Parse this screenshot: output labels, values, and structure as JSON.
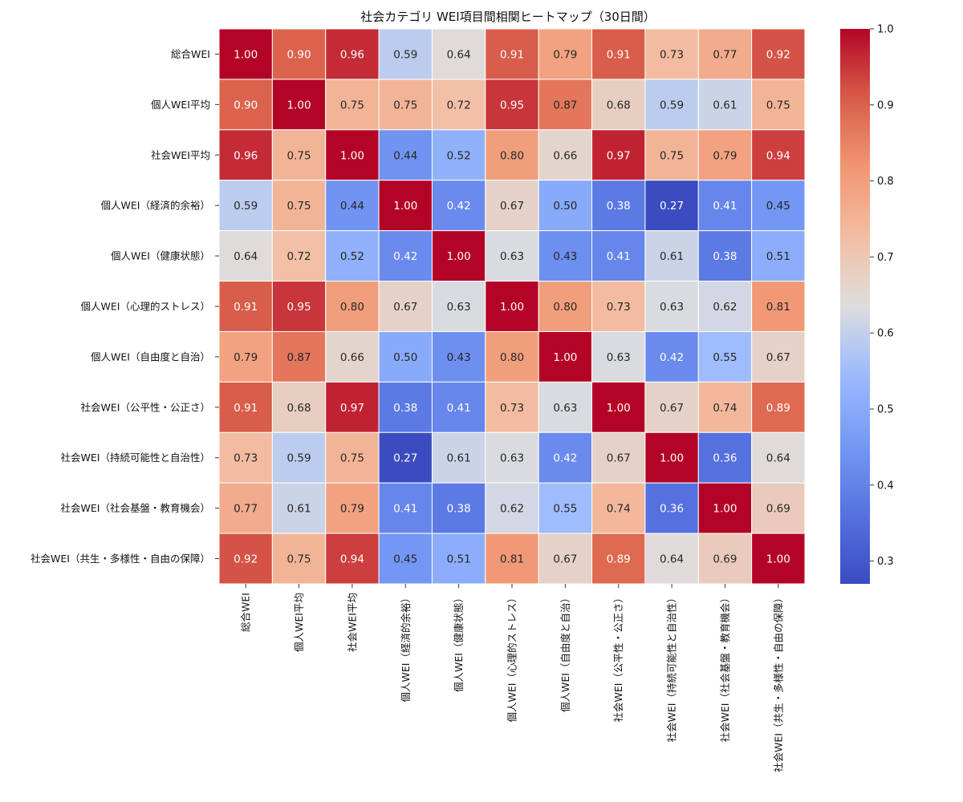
{
  "chart_data": {
    "type": "heatmap",
    "title": "社会カテゴリ WEI項目間相関ヒートマップ（30日間）",
    "labels": [
      "総合WEI",
      "個人WEI平均",
      "社会WEI平均",
      "個人WEI（経済的余裕）",
      "個人WEI（健康状態）",
      "個人WEI（心理的ストレス）",
      "個人WEI（自由度と自治）",
      "社会WEI（公平性・公正さ）",
      "社会WEI（持続可能性と自治性）",
      "社会WEI（社会基盤・教育機会）",
      "社会WEI（共生・多様性・自由の保障）"
    ],
    "matrix": [
      [
        1.0,
        0.9,
        0.96,
        0.59,
        0.64,
        0.91,
        0.79,
        0.91,
        0.73,
        0.77,
        0.92
      ],
      [
        0.9,
        1.0,
        0.75,
        0.75,
        0.72,
        0.95,
        0.87,
        0.68,
        0.59,
        0.61,
        0.75
      ],
      [
        0.96,
        0.75,
        1.0,
        0.44,
        0.52,
        0.8,
        0.66,
        0.97,
        0.75,
        0.79,
        0.94
      ],
      [
        0.59,
        0.75,
        0.44,
        1.0,
        0.42,
        0.67,
        0.5,
        0.38,
        0.27,
        0.41,
        0.45
      ],
      [
        0.64,
        0.72,
        0.52,
        0.42,
        1.0,
        0.63,
        0.43,
        0.41,
        0.61,
        0.38,
        0.51
      ],
      [
        0.91,
        0.95,
        0.8,
        0.67,
        0.63,
        1.0,
        0.8,
        0.73,
        0.63,
        0.62,
        0.81
      ],
      [
        0.79,
        0.87,
        0.66,
        0.5,
        0.43,
        0.8,
        1.0,
        0.63,
        0.42,
        0.55,
        0.67
      ],
      [
        0.91,
        0.68,
        0.97,
        0.38,
        0.41,
        0.73,
        0.63,
        1.0,
        0.67,
        0.74,
        0.89
      ],
      [
        0.73,
        0.59,
        0.75,
        0.27,
        0.61,
        0.63,
        0.42,
        0.67,
        1.0,
        0.36,
        0.64
      ],
      [
        0.77,
        0.61,
        0.79,
        0.41,
        0.38,
        0.62,
        0.55,
        0.74,
        0.36,
        1.0,
        0.69
      ],
      [
        0.92,
        0.75,
        0.94,
        0.45,
        0.51,
        0.81,
        0.67,
        0.89,
        0.64,
        0.69,
        1.0
      ]
    ],
    "colormap": "coolwarm",
    "vmin": 0.27,
    "vmax": 1.0,
    "colorbar_ticks": [
      "0.3",
      "0.4",
      "0.5",
      "0.6",
      "0.7",
      "0.8",
      "0.9",
      "1.0"
    ],
    "annotation_format": "2 decimals"
  }
}
